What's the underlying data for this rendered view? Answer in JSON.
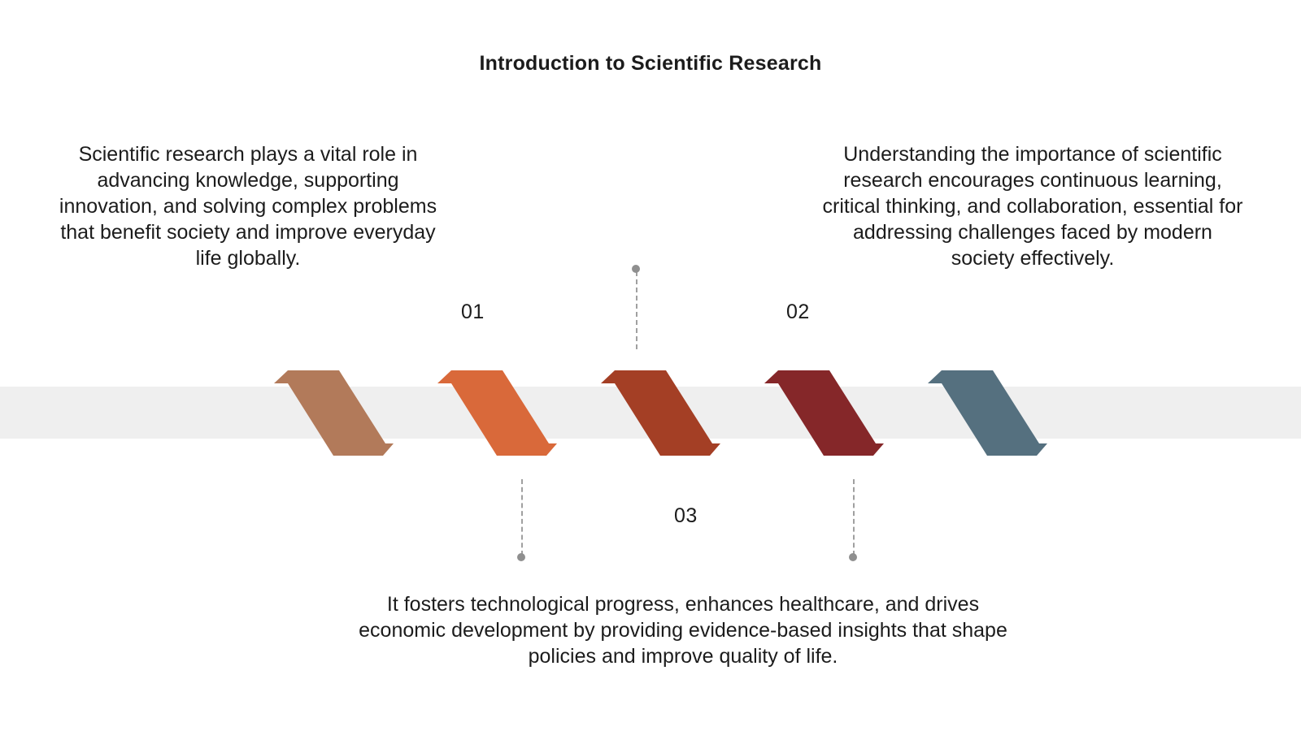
{
  "title": "Introduction to Scientific Research",
  "steps": [
    {
      "number": "01",
      "text": "Scientific research plays a vital role in advancing knowledge, supporting innovation, and solving complex problems that benefit society and improve everyday life globally."
    },
    {
      "number": "02",
      "text": "Understanding the importance of scientific research encourages continuous learning, critical thinking, and collaboration, essential for addressing challenges faced by modern society effectively."
    },
    {
      "number": "03",
      "text": "It fosters technological progress, enhances healthcare, and drives economic development by providing evidence-based insights that shape policies and improve quality of life."
    }
  ],
  "colors": {
    "chevron_1": "#b27a5a",
    "chevron_2": "#d9693a",
    "chevron_3": "#a43f25",
    "chevron_4": "#852729",
    "chevron_5": "#55707f",
    "band": "#efefef",
    "connector": "#a0a0a0"
  }
}
